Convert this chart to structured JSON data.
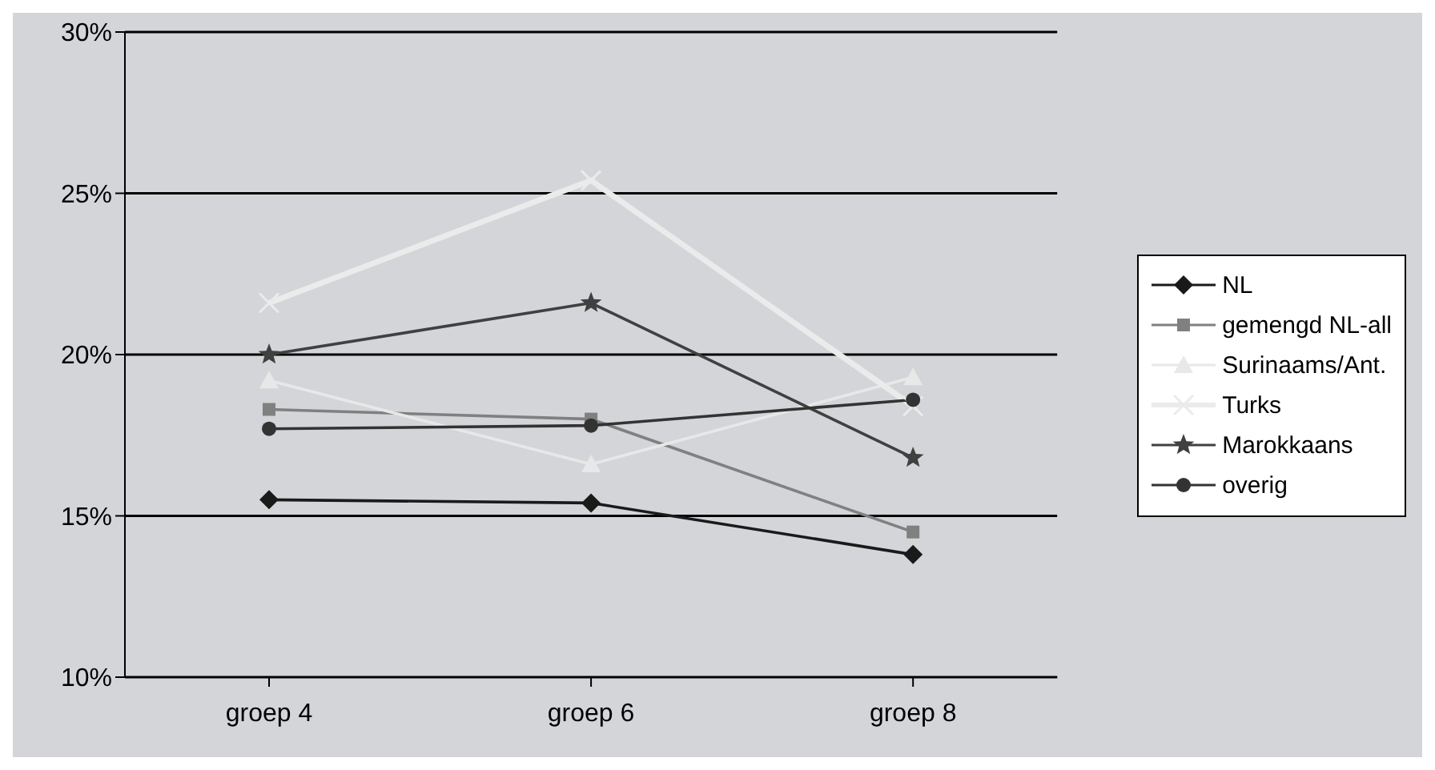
{
  "chart_data": {
    "type": "line",
    "categories": [
      "groep 4",
      "groep 6",
      "groep 8"
    ],
    "series": [
      {
        "name": "NL",
        "color": "#1a1a1a",
        "marker": "diamond",
        "values": [
          15.5,
          15.4,
          13.8
        ]
      },
      {
        "name": "gemengd NL-all",
        "color": "#808080",
        "marker": "square",
        "values": [
          18.3,
          18.0,
          14.5
        ]
      },
      {
        "name": "Surinaams/Ant.",
        "color": "#e8e8e8",
        "marker": "triangle",
        "values": [
          19.2,
          16.6,
          19.3
        ]
      },
      {
        "name": "Turks",
        "color": "#ebebeb",
        "marker": "cross",
        "values": [
          21.6,
          25.4,
          18.4
        ]
      },
      {
        "name": "Marokkaans",
        "color": "#404040",
        "marker": "star",
        "values": [
          20.0,
          21.6,
          16.8
        ]
      },
      {
        "name": "overig",
        "color": "#333333",
        "marker": "circle",
        "values": [
          17.7,
          17.8,
          18.6
        ]
      }
    ],
    "ylim": [
      10,
      30
    ],
    "yticks": [
      {
        "value": 10,
        "label": "10%"
      },
      {
        "value": 15,
        "label": "15%"
      },
      {
        "value": 20,
        "label": "20%"
      },
      {
        "value": 25,
        "label": "25%"
      },
      {
        "value": 30,
        "label": "30%"
      }
    ],
    "grid": "y",
    "legend": "right",
    "line_style": "solid"
  }
}
